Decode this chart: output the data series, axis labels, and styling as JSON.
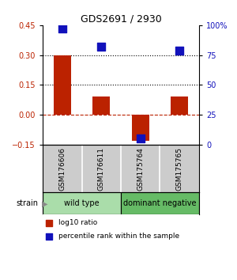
{
  "title": "GDS2691 / 2930",
  "samples": [
    "GSM176606",
    "GSM176611",
    "GSM175764",
    "GSM175765"
  ],
  "log10_ratio": [
    0.3,
    0.09,
    -0.13,
    0.09
  ],
  "percentile_rank": [
    97,
    82,
    5,
    79
  ],
  "groups": [
    {
      "label": "wild type",
      "color": "#aaddaa",
      "indices": [
        0,
        1
      ]
    },
    {
      "label": "dominant negative",
      "color": "#66bb66",
      "indices": [
        2,
        3
      ]
    }
  ],
  "ylim_left": [
    -0.15,
    0.45
  ],
  "ylim_right": [
    0,
    100
  ],
  "yticks_left": [
    -0.15,
    0,
    0.15,
    0.3,
    0.45
  ],
  "yticks_right": [
    0,
    25,
    50,
    75,
    100
  ],
  "hlines": [
    0.15,
    0.3
  ],
  "bar_color": "#BB2200",
  "dot_color": "#1111BB",
  "bar_width": 0.45,
  "dot_size": 45,
  "background_color": "#ffffff",
  "sample_panel_color": "#cccccc",
  "legend_labels": [
    "log10 ratio",
    "percentile rank within the sample"
  ]
}
